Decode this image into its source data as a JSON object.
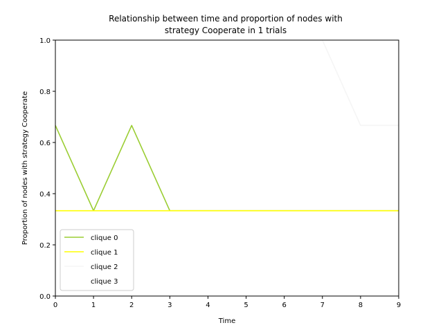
{
  "chart_data": {
    "type": "line",
    "title_lines": [
      "Relationship between time and proportion of nodes with",
      "strategy Cooperate in 1 trials"
    ],
    "xlabel": "Time",
    "ylabel": "Proportion of nodes with strategy Cooperate",
    "xlim": [
      0,
      9
    ],
    "ylim": [
      0,
      1
    ],
    "x_ticks": [
      "0",
      "1",
      "2",
      "3",
      "4",
      "5",
      "6",
      "7",
      "8",
      "9"
    ],
    "y_ticks": [
      "0.0",
      "0.2",
      "0.4",
      "0.6",
      "0.8",
      "1.0"
    ],
    "grid": false,
    "legend_position": "lower-left",
    "x": [
      0,
      1,
      2,
      3,
      4,
      5,
      6,
      7,
      8,
      9
    ],
    "series": [
      {
        "name": "clique 0",
        "color": "#9acd32",
        "values": [
          0.6667,
          0.3333,
          0.6667,
          0.3333,
          0.3333,
          0.3333,
          0.3333,
          0.3333,
          0.3333,
          0.3333
        ]
      },
      {
        "name": "clique 1",
        "color": "#ffff00",
        "values": [
          0.3333,
          0.3333,
          0.3333,
          0.3333,
          0.3333,
          0.3333,
          0.3333,
          0.3333,
          0.3333,
          0.3333
        ]
      },
      {
        "name": "clique 2",
        "color": "#f5f5f5",
        "values": [
          1.0,
          1.0,
          1.0,
          1.0,
          1.0,
          1.0,
          1.0,
          1.0,
          0.6667,
          0.6667
        ]
      },
      {
        "name": "clique 3",
        "color": "#ffffff",
        "values": [
          1.0,
          1.0,
          1.0,
          1.0,
          1.0,
          1.0,
          1.0,
          1.0,
          1.0,
          1.0
        ]
      }
    ]
  }
}
